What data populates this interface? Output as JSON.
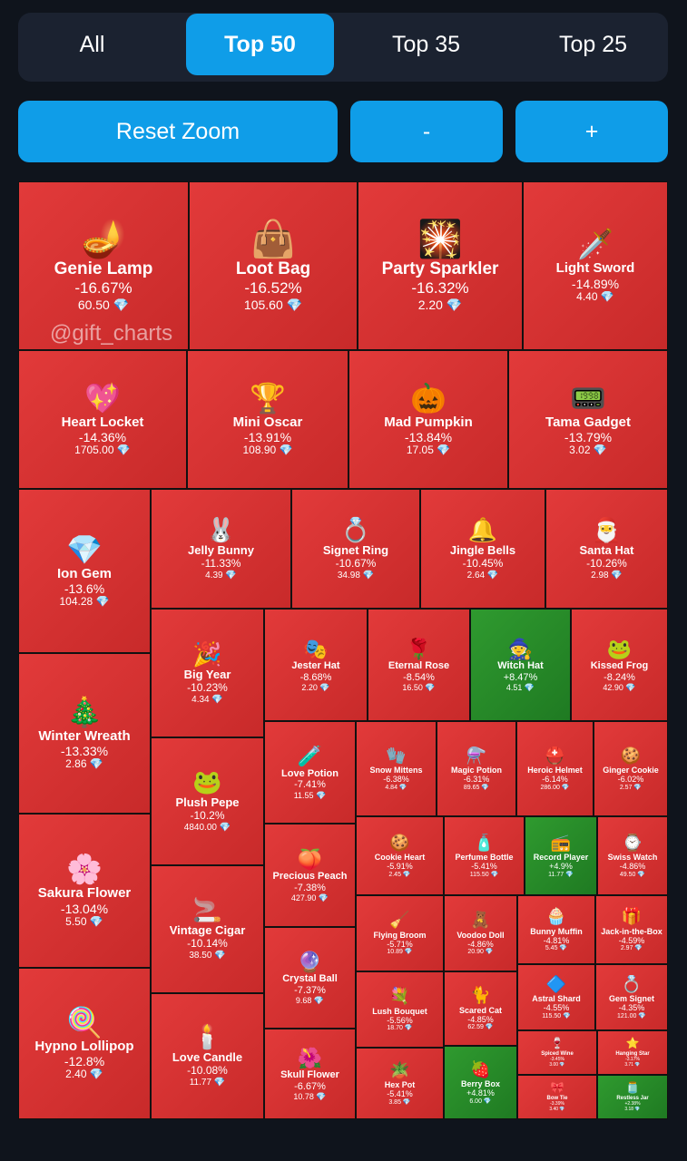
{
  "tabs": [
    {
      "label": "All",
      "active": false
    },
    {
      "label": "Top 50",
      "active": true
    },
    {
      "label": "Top 35",
      "active": false
    },
    {
      "label": "Top 25",
      "active": false
    }
  ],
  "controls": {
    "reset_label": "Reset Zoom",
    "minus_label": "-",
    "plus_label": "+"
  },
  "watermark": "@gift_charts",
  "colors": {
    "background": "#0f141c",
    "accent": "#0f9de8",
    "loss": "#d93232",
    "gain": "#2a8f2a"
  },
  "items": [
    {
      "name": "Genie Lamp",
      "change": "-16.67%",
      "price": "60.50",
      "dir": "down",
      "icon": "🪔"
    },
    {
      "name": "Loot Bag",
      "change": "-16.52%",
      "price": "105.60",
      "dir": "down",
      "icon": "👜"
    },
    {
      "name": "Party Sparkler",
      "change": "-16.32%",
      "price": "2.20",
      "dir": "down",
      "icon": "🎇"
    },
    {
      "name": "Light Sword",
      "change": "-14.89%",
      "price": "4.40",
      "dir": "down",
      "icon": "🗡️"
    },
    {
      "name": "Heart Locket",
      "change": "-14.36%",
      "price": "1705.00",
      "dir": "down",
      "icon": "💖"
    },
    {
      "name": "Mini Oscar",
      "change": "-13.91%",
      "price": "108.90",
      "dir": "down",
      "icon": "🏆"
    },
    {
      "name": "Mad Pumpkin",
      "change": "-13.84%",
      "price": "17.05",
      "dir": "down",
      "icon": "🎃"
    },
    {
      "name": "Tama Gadget",
      "change": "-13.79%",
      "price": "3.02",
      "dir": "down",
      "icon": "📟"
    },
    {
      "name": "Ion Gem",
      "change": "-13.6%",
      "price": "104.28",
      "dir": "down",
      "icon": "💎"
    },
    {
      "name": "Jelly Bunny",
      "change": "-11.33%",
      "price": "4.39",
      "dir": "down",
      "icon": "🐰"
    },
    {
      "name": "Signet Ring",
      "change": "-10.67%",
      "price": "34.98",
      "dir": "down",
      "icon": "💍"
    },
    {
      "name": "Jingle Bells",
      "change": "-10.45%",
      "price": "2.64",
      "dir": "down",
      "icon": "🔔"
    },
    {
      "name": "Santa Hat",
      "change": "-10.26%",
      "price": "2.98",
      "dir": "down",
      "icon": "🎅"
    },
    {
      "name": "Winter Wreath",
      "change": "-13.33%",
      "price": "2.86",
      "dir": "down",
      "icon": "🎄"
    },
    {
      "name": "Big Year",
      "change": "-10.23%",
      "price": "4.34",
      "dir": "down",
      "icon": "🎉"
    },
    {
      "name": "Jester Hat",
      "change": "-8.68%",
      "price": "2.20",
      "dir": "down",
      "icon": "🎭"
    },
    {
      "name": "Eternal Rose",
      "change": "-8.54%",
      "price": "16.50",
      "dir": "down",
      "icon": "🌹"
    },
    {
      "name": "Witch Hat",
      "change": "+8.47%",
      "price": "4.51",
      "dir": "up",
      "icon": "🧙"
    },
    {
      "name": "Kissed Frog",
      "change": "-8.24%",
      "price": "42.90",
      "dir": "down",
      "icon": "🐸"
    },
    {
      "name": "Love Potion",
      "change": "-7.41%",
      "price": "11.55",
      "dir": "down",
      "icon": "🧪"
    },
    {
      "name": "Snow Mittens",
      "change": "-6.38%",
      "price": "4.84",
      "dir": "down",
      "icon": "🧤"
    },
    {
      "name": "Magic Potion",
      "change": "-6.31%",
      "price": "89.65",
      "dir": "down",
      "icon": "⚗️"
    },
    {
      "name": "Heroic Helmet",
      "change": "-6.14%",
      "price": "286.00",
      "dir": "down",
      "icon": "⛑️"
    },
    {
      "name": "Ginger Cookie",
      "change": "-6.02%",
      "price": "2.57",
      "dir": "down",
      "icon": "🍪"
    },
    {
      "name": "Sakura Flower",
      "change": "-13.04%",
      "price": "5.50",
      "dir": "down",
      "icon": "🌸"
    },
    {
      "name": "Plush Pepe",
      "change": "-10.2%",
      "price": "4840.00",
      "dir": "down",
      "icon": "🐸"
    },
    {
      "name": "Cookie Heart",
      "change": "-5.91%",
      "price": "2.45",
      "dir": "down",
      "icon": "🍪"
    },
    {
      "name": "Perfume Bottle",
      "change": "-5.41%",
      "price": "115.50",
      "dir": "down",
      "icon": "🧴"
    },
    {
      "name": "Record Player",
      "change": "+4.9%",
      "price": "11.77",
      "dir": "up",
      "icon": "📻"
    },
    {
      "name": "Swiss Watch",
      "change": "-4.86%",
      "price": "49.50",
      "dir": "down",
      "icon": "⌚"
    },
    {
      "name": "Precious Peach",
      "change": "-7.38%",
      "price": "427.90",
      "dir": "down",
      "icon": "🍑"
    },
    {
      "name": "Vintage Cigar",
      "change": "-10.14%",
      "price": "38.50",
      "dir": "down",
      "icon": "🚬"
    },
    {
      "name": "Flying Broom",
      "change": "-5.71%",
      "price": "10.89",
      "dir": "down",
      "icon": "🧹"
    },
    {
      "name": "Voodoo Doll",
      "change": "-4.86%",
      "price": "20.90",
      "dir": "down",
      "icon": "🧸"
    },
    {
      "name": "Bunny Muffin",
      "change": "-4.81%",
      "price": "5.45",
      "dir": "down",
      "icon": "🧁"
    },
    {
      "name": "Jack-in-the-Box",
      "change": "-4.59%",
      "price": "2.97",
      "dir": "down",
      "icon": "🎁"
    },
    {
      "name": "Crystal Ball",
      "change": "-7.37%",
      "price": "9.68",
      "dir": "down",
      "icon": "🔮"
    },
    {
      "name": "Hypno Lollipop",
      "change": "-12.8%",
      "price": "2.40",
      "dir": "down",
      "icon": "🍭"
    },
    {
      "name": "Lush Bouquet",
      "change": "-5.56%",
      "price": "18.70",
      "dir": "down",
      "icon": "💐"
    },
    {
      "name": "Scared Cat",
      "change": "-4.85%",
      "price": "62.59",
      "dir": "down",
      "icon": "🐈"
    },
    {
      "name": "Astral Shard",
      "change": "-4.55%",
      "price": "115.50",
      "dir": "down",
      "icon": "🔷"
    },
    {
      "name": "Gem Signet",
      "change": "-4.35%",
      "price": "121.00",
      "dir": "down",
      "icon": "💍"
    },
    {
      "name": "Love Candle",
      "change": "-10.08%",
      "price": "11.77",
      "dir": "down",
      "icon": "🕯️"
    },
    {
      "name": "Skull Flower",
      "change": "-6.67%",
      "price": "10.78",
      "dir": "down",
      "icon": "🌺"
    },
    {
      "name": "Hex Pot",
      "change": "-5.41%",
      "price": "3.85",
      "dir": "down",
      "icon": "🪴"
    },
    {
      "name": "Berry Box",
      "change": "+4.81%",
      "price": "6.00",
      "dir": "up",
      "icon": "🍓"
    },
    {
      "name": "Spiced Wine",
      "change": "-3.45%",
      "price": "3.00",
      "dir": "down",
      "icon": "🍷"
    },
    {
      "name": "Hanging Star",
      "change": "-3.17%",
      "price": "3.71",
      "dir": "down",
      "icon": "⭐"
    },
    {
      "name": "Bow Tie",
      "change": "-3.39%",
      "price": "3.40",
      "dir": "down",
      "icon": "🎀"
    },
    {
      "name": "Restless Jar",
      "change": "+2.38%",
      "price": "3.18",
      "dir": "up",
      "icon": "🫙"
    }
  ]
}
